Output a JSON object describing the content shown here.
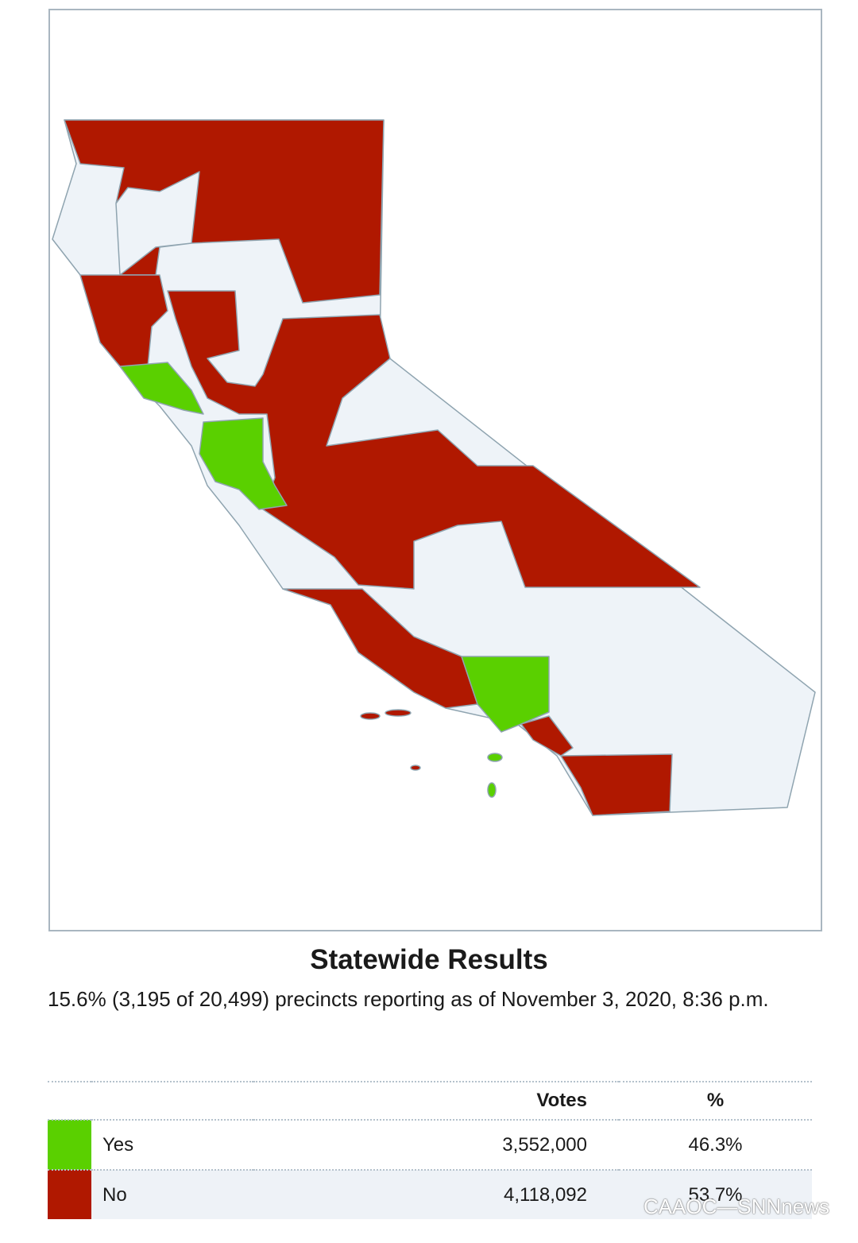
{
  "title": "Statewide Results",
  "subtitle": "15.6% (3,195 of 20,499) precincts reporting as of November 3, 2020, 8:36 p.m.",
  "table": {
    "header": [
      "Votes",
      "%"
    ],
    "rows": [
      {
        "color": "#5ad000",
        "label": "Yes",
        "votes": "3,552,000",
        "percent": "46.3%"
      },
      {
        "color": "#b01800",
        "label": "No",
        "votes": "4,118,092",
        "percent": "53.7%"
      }
    ]
  },
  "watermark": "CAAOC—SNNnews"
}
